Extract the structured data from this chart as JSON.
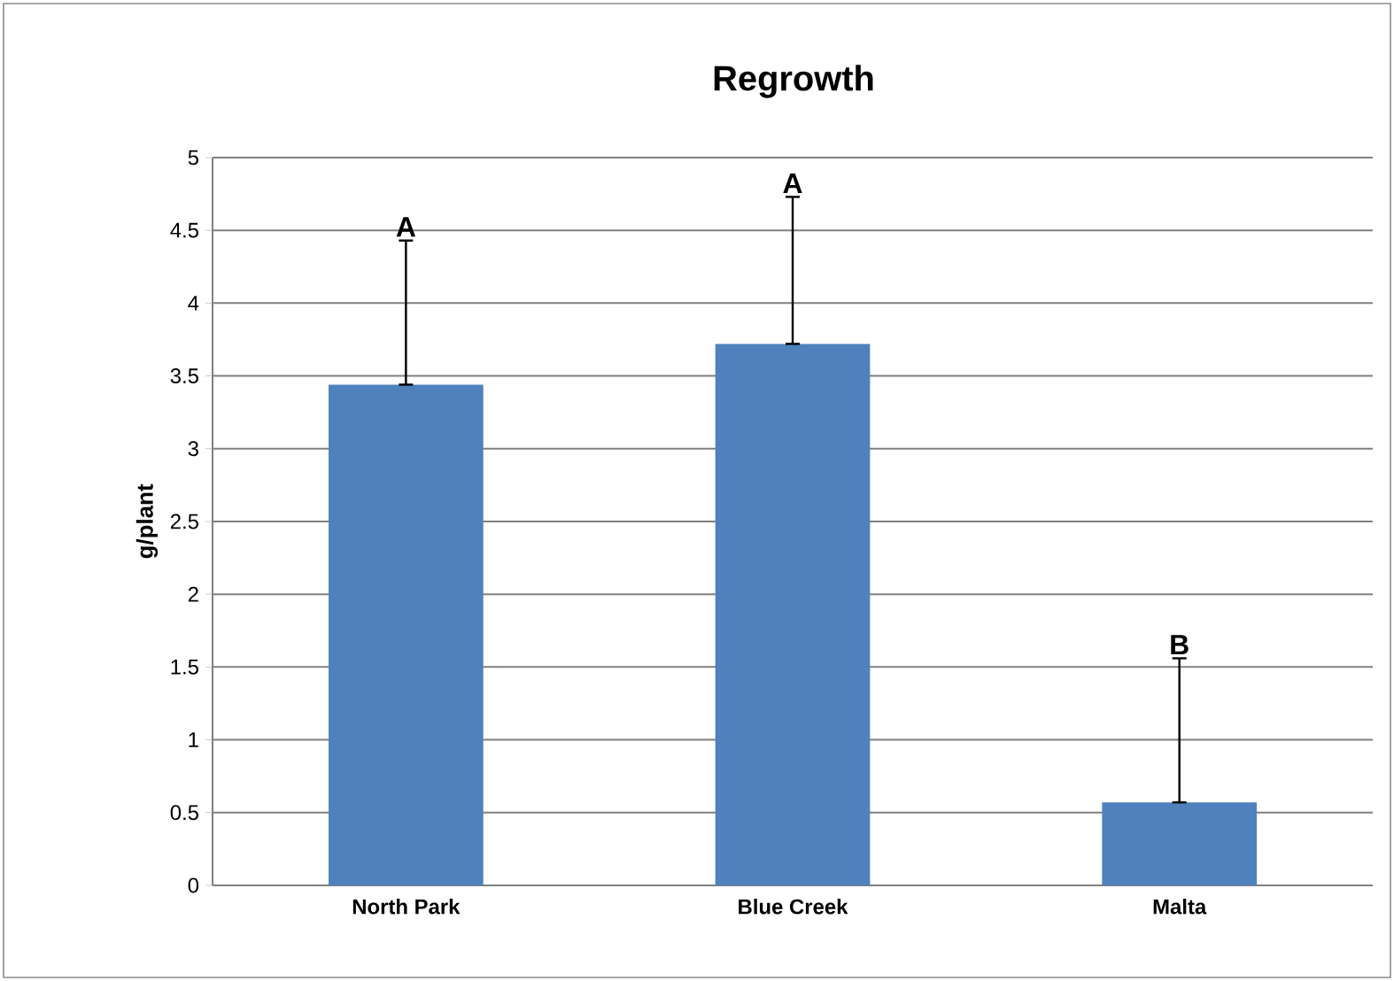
{
  "chart_data": {
    "type": "bar",
    "title": "Regrowth",
    "ylabel": "g/plant",
    "categories": [
      "North Park",
      "Blue Creek",
      "Malta"
    ],
    "values": [
      3.44,
      3.72,
      0.57
    ],
    "errors": [
      [
        3.44,
        4.43
      ],
      [
        3.72,
        4.73
      ],
      [
        0.57,
        1.56
      ]
    ],
    "color": "#4f81bd",
    "ylim": [
      0,
      5
    ],
    "yticks": [
      0,
      0.5,
      1,
      1.5,
      2,
      2.5,
      3,
      3.5,
      4,
      4.5,
      5
    ],
    "grid": "y",
    "annotations": [
      "A",
      "A",
      "B"
    ]
  }
}
